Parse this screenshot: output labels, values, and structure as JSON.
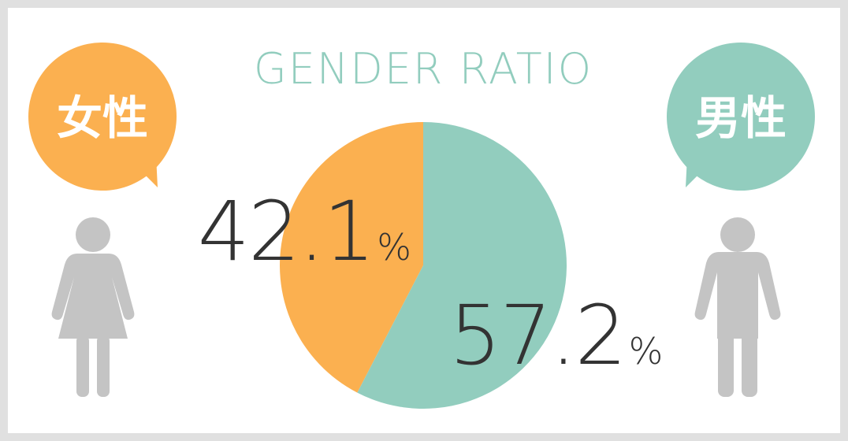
{
  "chart_data": {
    "type": "pie",
    "title": "GENDER RATIO",
    "categories": [
      "女性",
      "男性"
    ],
    "values": [
      42.1,
      57.2
    ],
    "value_labels": [
      "42.1%",
      "57.2%"
    ],
    "colors": [
      "#fbb050",
      "#92cdbe"
    ]
  }
}
